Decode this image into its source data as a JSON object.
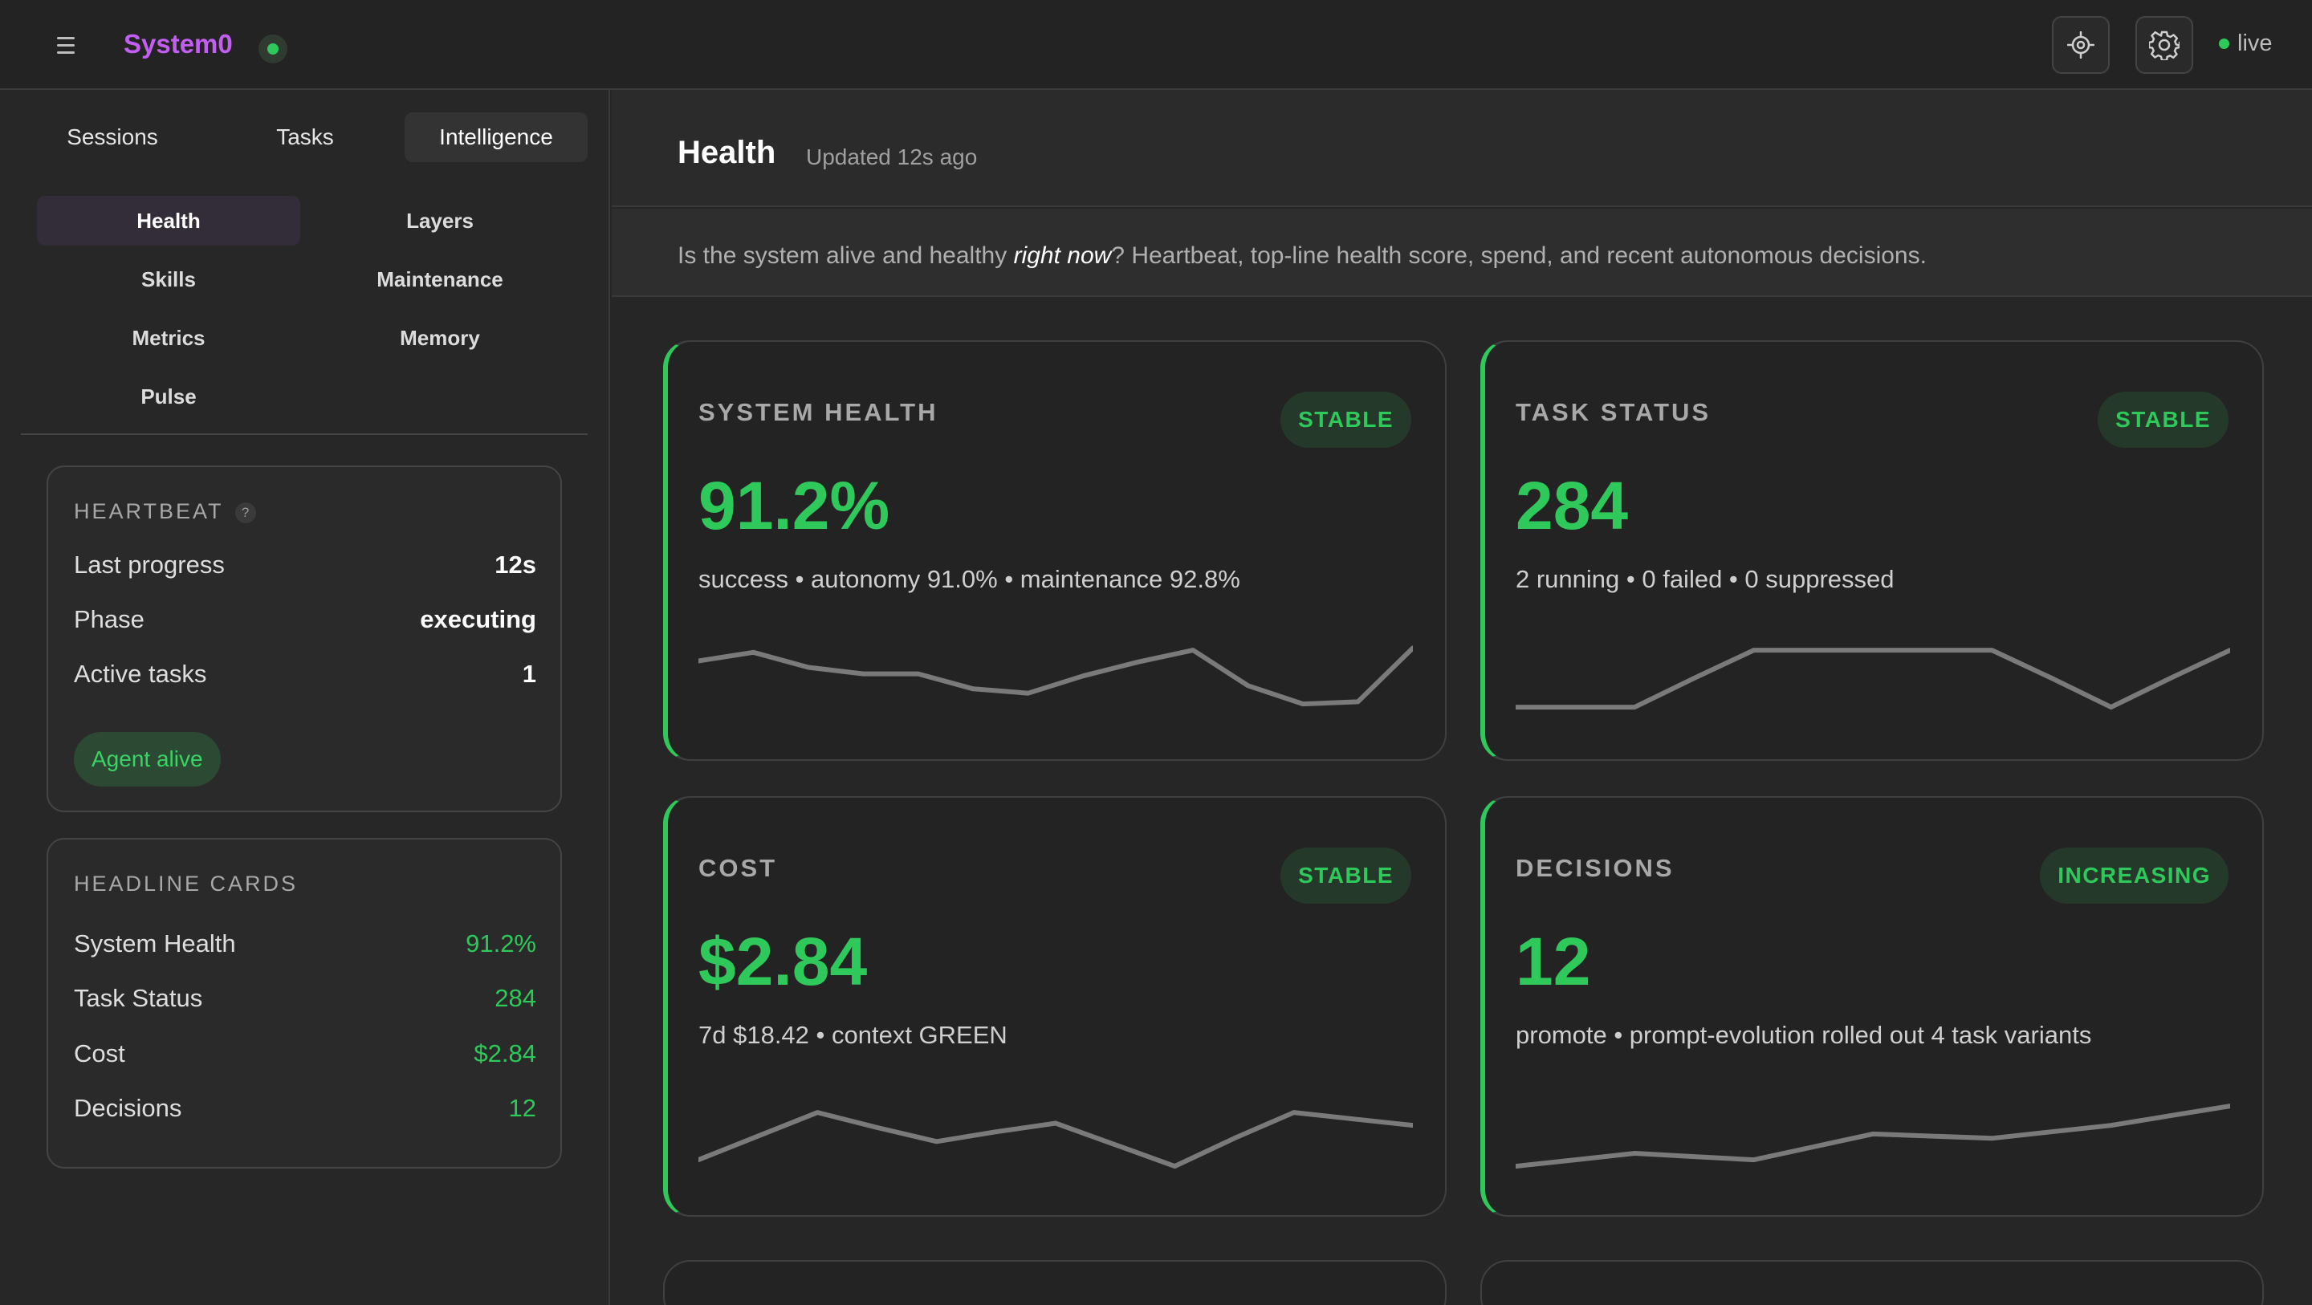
{
  "app": {
    "brand": "System0",
    "status_label": "live"
  },
  "topbar": {
    "menu_icon": "hamburger-icon",
    "target_icon": "crosshair-icon",
    "settings_icon": "gear-icon"
  },
  "sidebar": {
    "tabs": [
      "Sessions",
      "Tasks",
      "Intelligence"
    ],
    "active_tab": "Intelligence",
    "subnav": [
      "Health",
      "Layers",
      "Skills",
      "Maintenance",
      "Metrics",
      "Memory",
      "Pulse"
    ],
    "active_subnav": "Health",
    "heartbeat": {
      "title": "HEARTBEAT",
      "help": "?",
      "rows": [
        {
          "key": "Last progress",
          "value": "12s"
        },
        {
          "key": "Phase",
          "value": "executing"
        },
        {
          "key": "Active tasks",
          "value": "1"
        }
      ],
      "pill": "Agent alive"
    },
    "headline": {
      "title": "HEADLINE CARDS",
      "rows": [
        {
          "key": "System Health",
          "value": "91.2%"
        },
        {
          "key": "Task Status",
          "value": "284"
        },
        {
          "key": "Cost",
          "value": "$2.84"
        },
        {
          "key": "Decisions",
          "value": "12"
        }
      ]
    }
  },
  "main": {
    "title": "Health",
    "updated": "Updated 12s ago",
    "description_pre": "Is the system alive and healthy ",
    "description_em": "right now",
    "description_post": "? Heartbeat, top-line health score, spend, and recent autonomous decisions.",
    "cards": [
      {
        "label": "SYSTEM HEALTH",
        "badge": "STABLE",
        "value": "91.2%",
        "sub": "success • autonomy 91.0% • maintenance 92.8%",
        "spark": [
          0.78,
          0.86,
          0.72,
          0.66,
          0.66,
          0.52,
          0.48,
          0.64,
          0.77,
          0.88,
          0.55,
          0.38,
          0.4,
          0.9
        ]
      },
      {
        "label": "TASK STATUS",
        "badge": "STABLE",
        "value": "284",
        "sub": "2 running • 0 failed • 0 suppressed",
        "spark": [
          0.35,
          0.35,
          0.35,
          0.62,
          0.88,
          0.88,
          0.88,
          0.88,
          0.88,
          0.62,
          0.35,
          0.62,
          0.88
        ]
      },
      {
        "label": "COST",
        "badge": "STABLE",
        "value": "$2.84",
        "sub": "7d $18.42 • context GREEN",
        "spark": [
          0.38,
          0.6,
          0.82,
          0.68,
          0.55,
          0.64,
          0.72,
          0.52,
          0.32,
          0.58,
          0.82,
          0.76,
          0.7
        ]
      },
      {
        "label": "DECISIONS",
        "badge": "INCREASING",
        "value": "12",
        "sub": "promote • prompt-evolution rolled out 4 task variants",
        "spark": [
          0.32,
          0.38,
          0.44,
          0.41,
          0.38,
          0.5,
          0.62,
          0.6,
          0.58,
          0.64,
          0.7,
          0.79,
          0.88
        ]
      }
    ]
  },
  "colors": {
    "accent_green": "#2ec95a",
    "brand_purple": "#c25ff2",
    "background": "#262626"
  }
}
